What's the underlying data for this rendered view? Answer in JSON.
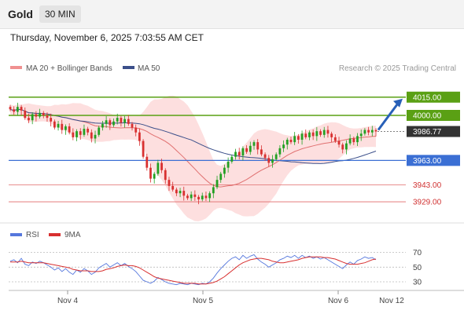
{
  "header": {
    "title": "Gold",
    "interval": "30 MIN"
  },
  "datetime": "Thursday, November 6, 2025 7:03:55 AM CET",
  "legend": {
    "ma20_bb": "MA 20 + Bollinger Bands",
    "ma50": "MA 50",
    "credit": "Research © 2025 Trading Central",
    "rsi": "RSI",
    "ma9": "9MA"
  },
  "colors": {
    "up": "#22a022",
    "down": "#d83030",
    "band": "#fcd4d4",
    "ma20": "#e07070",
    "ma50": "#3b4f8a",
    "resistance": "#5aa014",
    "support_blue": "#3b6fd4",
    "support_red": "#e06a6a",
    "arrow": "#2860b8",
    "current": "#333333",
    "rsi": "#5577dd",
    "rsi_ma": "#d83030"
  },
  "chart_data": {
    "type": "candlestick",
    "x_ticks": [
      "Nov 4",
      "Nov 5",
      "Nov 6",
      "Nov 12"
    ],
    "levels": [
      {
        "value": 4015.0,
        "label": "4015.00",
        "kind": "resistance"
      },
      {
        "value": 4000.0,
        "label": "4000.00",
        "kind": "resistance"
      },
      {
        "value": 3986.77,
        "label": "3986.77",
        "kind": "current"
      },
      {
        "value": 3963.0,
        "label": "3963.00",
        "kind": "support_blue"
      },
      {
        "value": 3943.0,
        "label": "3943.00",
        "kind": "support_red"
      },
      {
        "value": 3929.0,
        "label": "3929.00",
        "kind": "support_red"
      }
    ],
    "projection": {
      "from": 3986.77,
      "to": 4015.0
    },
    "close": [
      4005,
      4003,
      4007,
      4004,
      3998,
      3996,
      4001,
      3999,
      4002,
      4000,
      3998,
      3995,
      3990,
      3993,
      3988,
      3991,
      3986,
      3982,
      3987,
      3984,
      3989,
      3986,
      3981,
      3984,
      3990,
      3993,
      3996,
      3992,
      3995,
      3998,
      3994,
      3997,
      3993,
      3990,
      3986,
      3979,
      3966,
      3957,
      3948,
      3952,
      3961,
      3955,
      3947,
      3942,
      3939,
      3936,
      3938,
      3934,
      3932,
      3935,
      3933,
      3931,
      3934,
      3932,
      3936,
      3941,
      3947,
      3952,
      3957,
      3962,
      3966,
      3970,
      3967,
      3973,
      3970,
      3975,
      3978,
      3972,
      3968,
      3965,
      3961,
      3964,
      3968,
      3973,
      3976,
      3980,
      3978,
      3983,
      3980,
      3985,
      3982,
      3986,
      3983,
      3987,
      3984,
      3988,
      3985,
      3982,
      3979,
      3976,
      3972,
      3977,
      3981,
      3978,
      3983,
      3985,
      3988,
      3986,
      3988,
      3986.77
    ],
    "rsi": {
      "levels": [
        70,
        50,
        30
      ],
      "values": [
        58,
        60,
        56,
        62,
        54,
        52,
        57,
        55,
        58,
        56,
        53,
        50,
        46,
        49,
        44,
        48,
        43,
        40,
        46,
        43,
        48,
        45,
        40,
        43,
        49,
        52,
        55,
        50,
        53,
        56,
        52,
        55,
        51,
        48,
        44,
        38,
        32,
        30,
        28,
        31,
        36,
        33,
        30,
        28,
        27,
        26,
        28,
        27,
        26,
        28,
        27,
        26,
        28,
        27,
        30,
        35,
        42,
        48,
        53,
        58,
        62,
        64,
        60,
        66,
        62,
        65,
        67,
        61,
        57,
        54,
        50,
        53,
        56,
        60,
        62,
        65,
        63,
        66,
        62,
        66,
        63,
        65,
        62,
        64,
        61,
        63,
        60,
        57,
        54,
        51,
        48,
        53,
        57,
        54,
        59,
        61,
        64,
        62,
        63,
        60
      ],
      "ma_values": [
        57,
        57,
        57,
        58,
        57,
        56,
        56,
        56,
        56,
        56,
        55,
        54,
        53,
        52,
        51,
        50,
        49,
        47,
        46,
        45,
        45,
        45,
        44,
        44,
        44,
        45,
        47,
        48,
        49,
        51,
        52,
        53,
        52,
        52,
        51,
        49,
        46,
        43,
        40,
        37,
        35,
        34,
        33,
        32,
        31,
        30,
        29,
        28,
        28,
        28,
        28,
        27,
        27,
        27,
        28,
        29,
        31,
        34,
        37,
        41,
        45,
        49,
        53,
        56,
        58,
        60,
        61,
        62,
        62,
        61,
        60,
        58,
        57,
        56,
        56,
        57,
        58,
        59,
        60,
        62,
        63,
        64,
        64,
        64,
        64,
        63,
        63,
        62,
        61,
        59,
        57,
        55,
        54,
        54,
        54,
        55,
        56,
        58,
        60,
        61
      ]
    }
  }
}
